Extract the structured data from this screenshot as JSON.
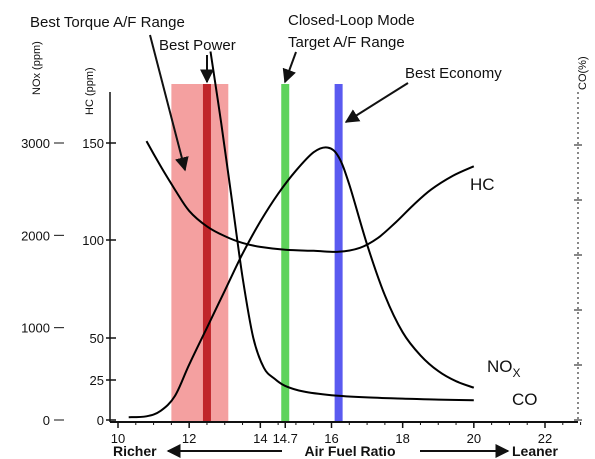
{
  "chart_data": {
    "type": "line",
    "xlabel": "Air Fuel Ratio",
    "x_direction_labels": {
      "left": "Richer",
      "right": "Leaner"
    },
    "xlim": [
      10,
      23
    ],
    "x_ticks": [
      10,
      12,
      14,
      14.7,
      16,
      18,
      20,
      22
    ],
    "x_tick_labels": [
      "10",
      "12",
      "14",
      "14.7",
      "16",
      "18",
      "20",
      "22"
    ],
    "axes": [
      {
        "id": "nox",
        "label": "NOx (ppm)",
        "ticks": [
          0,
          1000,
          2000,
          3000
        ],
        "ylim": [
          0,
          3750
        ]
      },
      {
        "id": "hc",
        "label": "HC (ppm)",
        "ticks": [
          0,
          25,
          50,
          100,
          150
        ],
        "tick_labels": [
          "0",
          "25",
          "50",
          "100",
          "150"
        ]
      },
      {
        "id": "co",
        "label": "CO(%)",
        "ticks": [
          0,
          1,
          2,
          3,
          4,
          5
        ],
        "tick_labels": [
          "",
          "",
          "",
          "",
          "",
          ""
        ]
      }
    ],
    "series": [
      {
        "name": "HC",
        "axis": "hc",
        "color": "#000000",
        "x": [
          10.8,
          11.2,
          11.6,
          12.0,
          12.5,
          13.0,
          13.5,
          14.0,
          14.7,
          15.5,
          16.2,
          16.8,
          17.3,
          17.8,
          18.3,
          18.8,
          19.4,
          20.0
        ],
        "y": [
          151,
          138,
          126,
          115,
          107,
          102,
          98.5,
          96.5,
          95,
          94.5,
          94,
          96,
          101,
          109,
          118,
          126,
          133,
          138
        ]
      },
      {
        "name": "NOX",
        "axis": "nox",
        "color": "#000000",
        "x": [
          10.3,
          10.8,
          11.2,
          11.6,
          12.0,
          12.5,
          13.0,
          13.5,
          14.0,
          14.5,
          15.0,
          15.5,
          15.9,
          16.2,
          16.5,
          17.0,
          17.5,
          18.0,
          18.5,
          19.0,
          19.5,
          20.0
        ],
        "y": [
          30,
          40,
          100,
          260,
          600,
          1000,
          1400,
          1800,
          2150,
          2450,
          2700,
          2900,
          2950,
          2850,
          2550,
          1900,
          1350,
          950,
          700,
          530,
          420,
          350
        ]
      },
      {
        "name": "CO",
        "axis": "co",
        "color": "#000000",
        "x": [
          12.6,
          12.9,
          13.2,
          13.5,
          13.8,
          14.1,
          14.4,
          14.7,
          15.2,
          16.0,
          17.0,
          18.0,
          19.0,
          20.0
        ],
        "y": [
          6.7,
          5.4,
          4.0,
          2.6,
          1.5,
          0.95,
          0.75,
          0.62,
          0.52,
          0.45,
          0.41,
          0.39,
          0.37,
          0.36
        ]
      }
    ],
    "bands": [
      {
        "name": "Best Torque A/F Range",
        "x": [
          11.5,
          13.1
        ],
        "color": "#f4a0a0"
      },
      {
        "name": "Best Power",
        "x": [
          12.5,
          12.5
        ],
        "color": "#c0262b"
      },
      {
        "name": "Closed-Loop Mode Target A/F Range",
        "x": [
          14.7,
          14.7
        ],
        "color": "#5fd35b"
      },
      {
        "name": "Best Economy",
        "x": [
          16.2,
          16.2
        ],
        "color": "#5a5af0"
      }
    ],
    "annotations": [
      "Best Torque A/F Range",
      "Best Power",
      "Closed-Loop Mode",
      "Target A/F Range",
      "Best Economy"
    ],
    "curve_labels": [
      "HC",
      "NO",
      "X",
      "CO"
    ]
  }
}
